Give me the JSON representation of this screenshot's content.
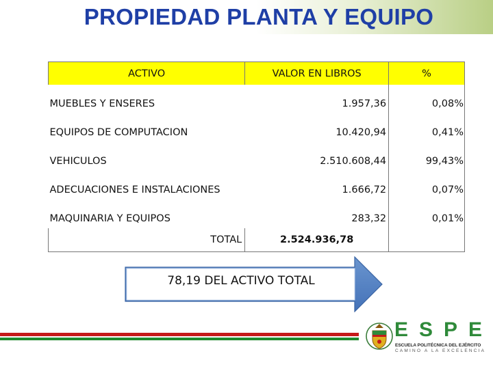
{
  "slide": {
    "title": "PROPIEDAD PLANTA Y EQUIPO"
  },
  "table": {
    "headers": {
      "activo": "ACTIVO",
      "valor": "VALOR EN LIBROS",
      "pct": "%"
    },
    "rows": [
      {
        "name": "MUEBLES Y ENSERES",
        "value": "1.957,36",
        "pct": "0,08%"
      },
      {
        "name": "EQUIPOS DE COMPUTACION",
        "value": "10.420,94",
        "pct": "0,41%"
      },
      {
        "name": "VEHICULOS",
        "value": "2.510.608,44",
        "pct": "99,43%"
      },
      {
        "name": "ADECUACIONES E INSTALACIONES",
        "value": "1.666,72",
        "pct": "0,07%"
      },
      {
        "name": "MAQUINARIA Y EQUIPOS",
        "value": "283,32",
        "pct": "0,01%"
      }
    ],
    "total": {
      "label": "TOTAL",
      "value": "2.524.936,78",
      "pct": ""
    }
  },
  "callout": {
    "text": "78,19 DEL ACTIVO TOTAL"
  },
  "logo": {
    "letters": "ESPE",
    "line1": "ESCUELA POLITÉCNICA DEL EJÉRCITO",
    "line2": "CAMINO A LA EXCELENCIA"
  },
  "colors": {
    "title": "#1f3fa6",
    "header_fill": "#ffff00",
    "arrow_fill": "#4f81bd",
    "footer_red": "#c61a1a",
    "footer_green": "#1f8a2e",
    "logo_green": "#2f8a3a"
  }
}
